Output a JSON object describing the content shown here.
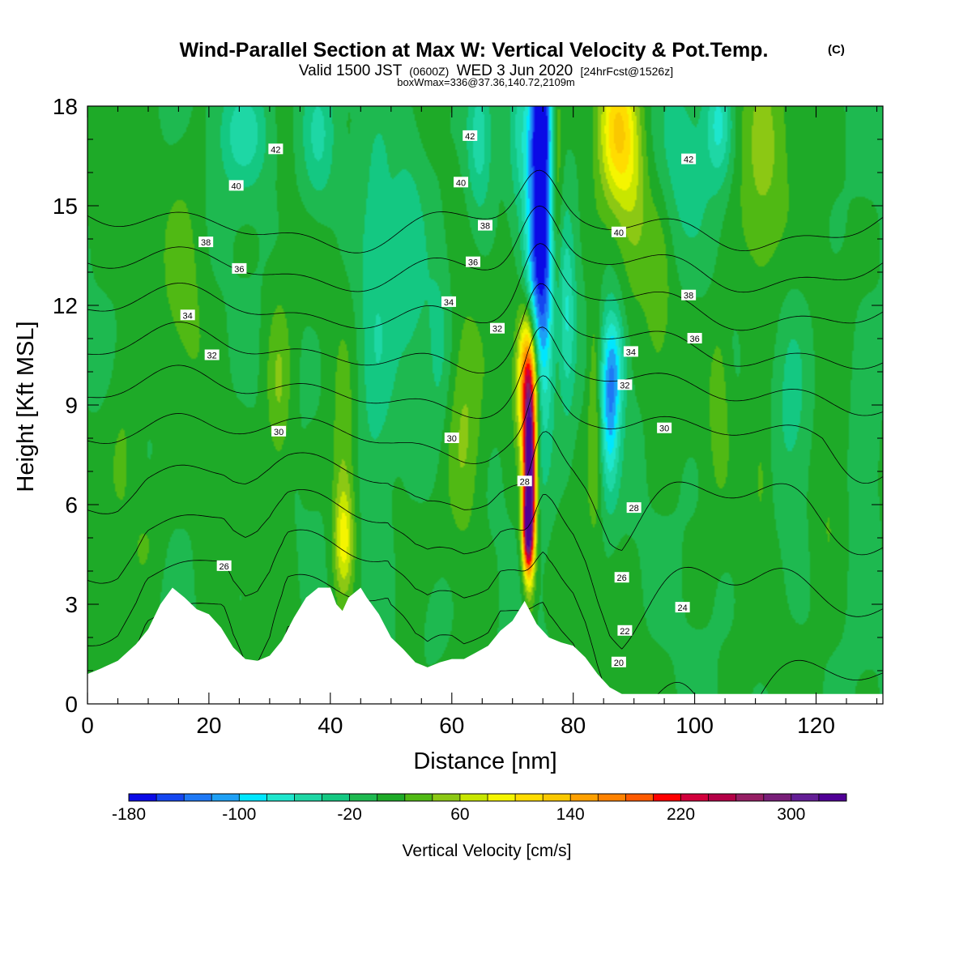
{
  "chart_data": {
    "type": "heatmap",
    "title": "Wind-Parallel Section at Max W: Vertical Velocity & Pot.Temp.",
    "title_suffix": "(C)",
    "subtitle": {
      "prefix": "Valid 1500 JST",
      "utc": "(0600Z)",
      "date": "WED 3 Jun 2020",
      "forecast": "[24hrFcst@1526z]"
    },
    "box_info": "boxWmax=336@37.36,140.72,2109m",
    "xlabel": "Distance [nm]",
    "ylabel": "Height [Kft MSL]",
    "xlim": [
      0,
      131
    ],
    "ylim": [
      0,
      18
    ],
    "x_ticks": [
      "0",
      "20",
      "40",
      "60",
      "80",
      "100",
      "120"
    ],
    "y_ticks": [
      "0",
      "3",
      "6",
      "9",
      "12",
      "15",
      "18"
    ],
    "colorbar": {
      "label": "Vertical Velocity [cm/s]",
      "tick_labels": [
        "-180",
        "-100",
        "-20",
        "60",
        "140",
        "220",
        "300"
      ],
      "min": -180,
      "max": 340,
      "step": 20,
      "colors": [
        "#0a0ae6",
        "#1446f0",
        "#1e78f5",
        "#1ea0f5",
        "#00e6ff",
        "#1ee6cd",
        "#1ed7a5",
        "#14c882",
        "#1eb950",
        "#1eaa28",
        "#50b914",
        "#8cc814",
        "#c8e600",
        "#f5f500",
        "#ffdc00",
        "#fac800",
        "#ffa000",
        "#ff8200",
        "#ff5a00",
        "#ff0000",
        "#d2003c",
        "#b40046",
        "#961e64",
        "#781e78",
        "#641e96",
        "#500096"
      ]
    },
    "terrain": [
      [
        0,
        0.9
      ],
      [
        2,
        1.05
      ],
      [
        5,
        1.3
      ],
      [
        8,
        1.8
      ],
      [
        10,
        2.25
      ],
      [
        12,
        3.0
      ],
      [
        14,
        3.5
      ],
      [
        16,
        3.2
      ],
      [
        18,
        2.85
      ],
      [
        20,
        2.7
      ],
      [
        22,
        2.3
      ],
      [
        24,
        1.7
      ],
      [
        26,
        1.35
      ],
      [
        28,
        1.3
      ],
      [
        30,
        1.45
      ],
      [
        32,
        1.9
      ],
      [
        34,
        2.6
      ],
      [
        36,
        3.2
      ],
      [
        38,
        3.5
      ],
      [
        40,
        3.5
      ],
      [
        41,
        3.0
      ],
      [
        42,
        2.8
      ],
      [
        43,
        3.2
      ],
      [
        45,
        3.5
      ],
      [
        46,
        3.2
      ],
      [
        48,
        2.7
      ],
      [
        50,
        2.0
      ],
      [
        52,
        1.65
      ],
      [
        54,
        1.25
      ],
      [
        56,
        1.1
      ],
      [
        58,
        1.25
      ],
      [
        60,
        1.35
      ],
      [
        62,
        1.35
      ],
      [
        64,
        1.55
      ],
      [
        66,
        1.75
      ],
      [
        68,
        2.2
      ],
      [
        70,
        2.5
      ],
      [
        72,
        3.1
      ],
      [
        74,
        2.4
      ],
      [
        76,
        2.0
      ],
      [
        78,
        1.85
      ],
      [
        80,
        1.75
      ],
      [
        82,
        1.4
      ],
      [
        84,
        0.9
      ],
      [
        86,
        0.5
      ],
      [
        88,
        0.3
      ],
      [
        131,
        0.3
      ]
    ],
    "plumes": [
      {
        "x": 74.5,
        "y": 13.5,
        "sx": 1.6,
        "sy": 3.6,
        "w": -185
      },
      {
        "x": 74.8,
        "y": 17.8,
        "sx": 1.2,
        "sy": 1.5,
        "w": -120
      },
      {
        "x": 72.8,
        "y": 6.8,
        "sx": 0.7,
        "sy": 1.8,
        "w": 360
      },
      {
        "x": 72.6,
        "y": 9.8,
        "sx": 1.2,
        "sy": 1.5,
        "w": 215
      },
      {
        "x": 72.5,
        "y": 5.2,
        "sx": 0.6,
        "sy": 0.8,
        "w": 180
      },
      {
        "x": 77.2,
        "y": 15.5,
        "sx": 0.7,
        "sy": 2.8,
        "w": 60
      },
      {
        "x": 79,
        "y": 11.5,
        "sx": 1.0,
        "sy": 2.0,
        "w": -60
      },
      {
        "x": 86,
        "y": 8.8,
        "sx": 1.1,
        "sy": 1.8,
        "w": -95
      },
      {
        "x": 87,
        "y": 10.2,
        "sx": 1.3,
        "sy": 1.2,
        "w": -60
      },
      {
        "x": 87.2,
        "y": 17.3,
        "sx": 2.2,
        "sy": 1.6,
        "w": 110
      },
      {
        "x": 90,
        "y": 15.0,
        "sx": 1.8,
        "sy": 2.0,
        "w": 40
      },
      {
        "x": 83.5,
        "y": 9.0,
        "sx": 0.8,
        "sy": 2.5,
        "w": 45
      },
      {
        "x": 42.2,
        "y": 4.9,
        "sx": 1.1,
        "sy": 1.1,
        "w": 65
      },
      {
        "x": 42.2,
        "y": 6.8,
        "sx": 1.4,
        "sy": 2.5,
        "w": 40
      },
      {
        "x": 31.5,
        "y": 9.5,
        "sx": 1.5,
        "sy": 2.0,
        "w": 42
      },
      {
        "x": 62,
        "y": 8.3,
        "sx": 2.2,
        "sy": 2.5,
        "w": 45
      },
      {
        "x": 47.5,
        "y": 11.0,
        "sx": 2.2,
        "sy": 4.0,
        "w": -40
      },
      {
        "x": 53,
        "y": 13.5,
        "sx": 2.0,
        "sy": 3.0,
        "w": -30
      },
      {
        "x": 58,
        "y": 11.0,
        "sx": 1.5,
        "sy": 2.5,
        "w": -25
      },
      {
        "x": 64.5,
        "y": 17.0,
        "sx": 1.5,
        "sy": 1.5,
        "w": -60
      },
      {
        "x": 71,
        "y": 17.2,
        "sx": 1.2,
        "sy": 2.0,
        "w": -30
      },
      {
        "x": 26,
        "y": 17.2,
        "sx": 3.0,
        "sy": 1.2,
        "w": -55
      },
      {
        "x": 38,
        "y": 17.0,
        "sx": 2.0,
        "sy": 1.5,
        "w": -45
      },
      {
        "x": 111,
        "y": 16.0,
        "sx": 3.0,
        "sy": 3.0,
        "w": 40
      },
      {
        "x": 104,
        "y": 17.5,
        "sx": 1.5,
        "sy": 1.2,
        "w": -60
      },
      {
        "x": 98,
        "y": 16.2,
        "sx": 3.5,
        "sy": 2.0,
        "w": -30
      },
      {
        "x": 94,
        "y": 12.5,
        "sx": 1.5,
        "sy": 2.2,
        "w": 30
      },
      {
        "x": 104,
        "y": 9.2,
        "sx": 1.2,
        "sy": 1.8,
        "w": 30
      },
      {
        "x": 111,
        "y": 7.0,
        "sx": 1.2,
        "sy": 1.5,
        "w": 25
      },
      {
        "x": 116,
        "y": 9.0,
        "sx": 2.0,
        "sy": 2.5,
        "w": -25
      },
      {
        "x": 122,
        "y": 6.0,
        "sx": 2.0,
        "sy": 2.0,
        "w": 25
      },
      {
        "x": 128,
        "y": 7.5,
        "sx": 2.0,
        "sy": 2.5,
        "w": -20
      },
      {
        "x": 6,
        "y": 7.5,
        "sx": 2.0,
        "sy": 2.0,
        "w": 25
      },
      {
        "x": 16,
        "y": 13.0,
        "sx": 2.5,
        "sy": 2.5,
        "w": 25
      },
      {
        "x": 10,
        "y": 5.0,
        "sx": 2.0,
        "sy": 1.2,
        "w": 20
      },
      {
        "x": 57.5,
        "y": 2.4,
        "sx": 1.5,
        "sy": 0.8,
        "w": -20
      }
    ],
    "isentropes": {
      "levels": [
        20,
        22,
        24,
        26,
        28,
        30,
        32,
        34,
        36,
        38,
        40,
        42
      ],
      "labels": [
        {
          "x": 22.5,
          "y": 4.15,
          "text": "26"
        },
        {
          "x": 88,
          "y": 3.8,
          "text": "26"
        },
        {
          "x": 31.5,
          "y": 8.2,
          "text": "30"
        },
        {
          "x": 60,
          "y": 8.0,
          "text": "30"
        },
        {
          "x": 95,
          "y": 8.3,
          "text": "30"
        },
        {
          "x": 72,
          "y": 6.7,
          "text": "28"
        },
        {
          "x": 90,
          "y": 5.9,
          "text": "28"
        },
        {
          "x": 98,
          "y": 2.9,
          "text": "24"
        },
        {
          "x": 88.5,
          "y": 2.2,
          "text": "22"
        },
        {
          "x": 87.5,
          "y": 1.25,
          "text": "20"
        },
        {
          "x": 20.5,
          "y": 10.5,
          "text": "32"
        },
        {
          "x": 67.5,
          "y": 11.3,
          "text": "32"
        },
        {
          "x": 88.5,
          "y": 9.6,
          "text": "32"
        },
        {
          "x": 16.5,
          "y": 11.7,
          "text": "34"
        },
        {
          "x": 59.5,
          "y": 12.1,
          "text": "34"
        },
        {
          "x": 89.5,
          "y": 10.6,
          "text": "34"
        },
        {
          "x": 25,
          "y": 13.1,
          "text": "36"
        },
        {
          "x": 63.5,
          "y": 13.3,
          "text": "36"
        },
        {
          "x": 100,
          "y": 11.0,
          "text": "36"
        },
        {
          "x": 19.5,
          "y": 13.9,
          "text": "38"
        },
        {
          "x": 65.5,
          "y": 14.4,
          "text": "38"
        },
        {
          "x": 99,
          "y": 12.3,
          "text": "38"
        },
        {
          "x": 24.5,
          "y": 15.6,
          "text": "40"
        },
        {
          "x": 61.5,
          "y": 15.7,
          "text": "40"
        },
        {
          "x": 87.5,
          "y": 14.2,
          "text": "40"
        },
        {
          "x": 31,
          "y": 16.7,
          "text": "42"
        },
        {
          "x": 63,
          "y": 17.1,
          "text": "42"
        },
        {
          "x": 99,
          "y": 16.4,
          "text": "42"
        }
      ]
    }
  }
}
